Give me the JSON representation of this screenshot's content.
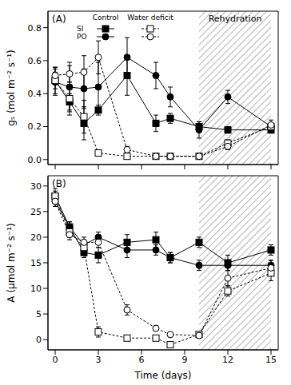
{
  "chart_data": [
    {
      "type": "line",
      "title": "(A)",
      "ylabel": "gₛ (mol m⁻² s⁻¹)",
      "x": [
        0,
        1,
        2,
        3,
        5,
        7,
        8,
        10,
        12,
        15
      ],
      "xlim": [
        -0.5,
        15.5
      ],
      "xticks": [
        0,
        3,
        6,
        9,
        12,
        15
      ],
      "ylim": [
        -0.03,
        0.9
      ],
      "yticks": [
        {
          "value": 0,
          "label": "0.0"
        },
        {
          "value": 0.2,
          "label": "0.2"
        },
        {
          "value": 0.4,
          "label": "0.4"
        },
        {
          "value": 0.6,
          "label": "0.6"
        },
        {
          "value": 0.8,
          "label": "0.8"
        }
      ],
      "tick_labels": "y",
      "legend": "upper left",
      "shaded_region": [
        10,
        15
      ],
      "annotation": "Rehydration",
      "series": [
        {
          "name": "SI",
          "treatment": "Control",
          "color": "#000000",
          "marker": "square",
          "line_style": "solid",
          "values": [
            0.48,
            0.35,
            0.22,
            0.3,
            0.51,
            0.22,
            0.25,
            0.2,
            0.18,
            0.18
          ],
          "errors": [
            0.08,
            0.05,
            0.1,
            0.03,
            0.12,
            0.05,
            0.03,
            0.03,
            0.02,
            0.02
          ]
        },
        {
          "name": "PO",
          "treatment": "Control",
          "color": "#000000",
          "marker": "circle",
          "line_style": "solid",
          "values": [
            0.47,
            0.44,
            0.43,
            0.44,
            0.62,
            0.51,
            0.38,
            0.18,
            0.38,
            0.2
          ],
          "errors": [
            0.08,
            0.15,
            0.12,
            0.15,
            0.12,
            0.08,
            0.06,
            0.05,
            0.04,
            0.02
          ]
        },
        {
          "name": "SI",
          "treatment": "Water deficit",
          "color": "#000000",
          "marker": "square_open",
          "line_style": "dashed",
          "values": [
            0.48,
            0.37,
            0.26,
            0.04,
            0.02,
            0.02,
            0.02,
            0.02,
            0.1,
            0.2
          ],
          "errors": [
            0.05,
            0.1,
            0.1,
            0.01,
            0.01,
            0.01,
            0.01,
            0.01,
            0.02,
            0.02
          ]
        },
        {
          "name": "PO",
          "treatment": "Water deficit",
          "color": "#000000",
          "marker": "circle_open",
          "line_style": "dashed",
          "values": [
            0.51,
            0.52,
            0.53,
            0.62,
            0.06,
            0.02,
            0.02,
            0.02,
            0.08,
            0.21
          ],
          "errors": [
            0.05,
            0.05,
            0.1,
            0.1,
            0.02,
            0.01,
            0.01,
            0.01,
            0.02,
            0.03
          ]
        }
      ]
    },
    {
      "type": "line",
      "title": "(B)",
      "ylabel": "A (µmol m⁻² s⁻¹)",
      "xlabel": "Time (days)",
      "x": [
        0,
        1,
        2,
        3,
        5,
        7,
        8,
        10,
        12,
        15
      ],
      "xlim": [
        -0.5,
        15.5
      ],
      "xticks": [
        0,
        3,
        6,
        9,
        12,
        15
      ],
      "ylim": [
        -2,
        32
      ],
      "yticks": [
        0,
        5,
        10,
        15,
        20,
        25,
        30
      ],
      "shaded_region": [
        10,
        15
      ],
      "series": [
        {
          "color": "#000000",
          "marker": "square",
          "line_style": "solid",
          "values": [
            28,
            22,
            17,
            16.5,
            19,
            19.5,
            16,
            19,
            15,
            17.5
          ],
          "errors": [
            1.5,
            1,
            1,
            1.5,
            1.5,
            1.5,
            1,
            1,
            1.5,
            1
          ]
        },
        {
          "color": "#000000",
          "marker": "circle",
          "line_style": "solid",
          "values": [
            27,
            22,
            18.5,
            20,
            17.5,
            17.5,
            16,
            14.5,
            14.5,
            14.5
          ],
          "errors": [
            1,
            1,
            1,
            1,
            1.5,
            1,
            1,
            1,
            1,
            1
          ]
        },
        {
          "color": "#000000",
          "marker": "square_open",
          "line_style": "dashed",
          "values": [
            28,
            21,
            18,
            1.5,
            0.3,
            0.3,
            -1,
            1,
            9.5,
            13
          ],
          "errors": [
            1,
            1,
            1,
            1,
            0.5,
            0.5,
            0.5,
            0.5,
            1,
            1.5
          ]
        },
        {
          "color": "#000000",
          "marker": "circle_open",
          "line_style": "dashed",
          "values": [
            27,
            20.5,
            19,
            19,
            5.8,
            2.2,
            1.0,
            0.8,
            12,
            14
          ],
          "errors": [
            1,
            1,
            1,
            1,
            1,
            0.5,
            0.5,
            0.5,
            1.5,
            1.5
          ]
        }
      ]
    }
  ]
}
